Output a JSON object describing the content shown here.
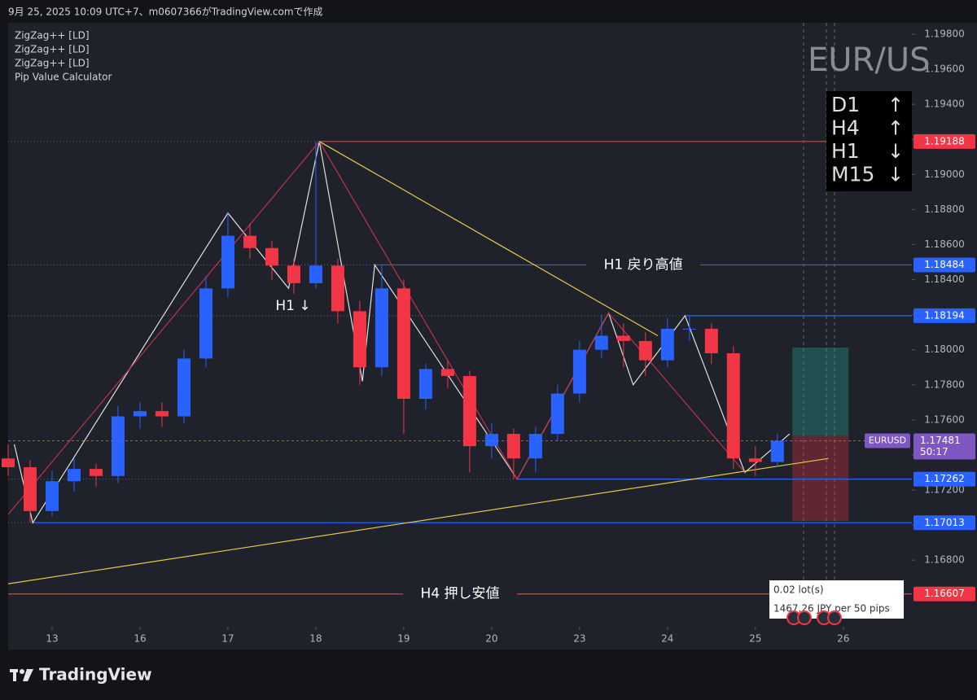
{
  "header": {
    "caption": "9月 25, 2025 10:09 UTC+7、m0607366がTradingView.comで作成"
  },
  "footer": {
    "brand": "TradingView"
  },
  "chart_data": {
    "type": "candlestick",
    "indicators": [
      "ZigZag++ [LD]",
      "ZigZag++ [LD]",
      "ZigZag++ [LD]",
      "Pip Value Calculator"
    ],
    "watermark": "EUR/US",
    "symbol": "EURUSD",
    "last": 1.17481,
    "last_color": "#7e57c2",
    "countdown": "50:17",
    "up_color": "#2962ff",
    "down_color": "#f23645",
    "ylim": [
      1.1642,
      1.19865
    ],
    "yticks": [
      {
        "value": 1.168,
        "label": "1.16800"
      },
      {
        "value": 1.17,
        "label": "1.17000"
      },
      {
        "value": 1.172,
        "label": "1.17200"
      },
      {
        "value": 1.174,
        "label": "1.17400"
      },
      {
        "value": 1.176,
        "label": "1.17600"
      },
      {
        "value": 1.178,
        "label": "1.17800"
      },
      {
        "value": 1.18,
        "label": "1.18000"
      },
      {
        "value": 1.182,
        "label": "1.18200"
      },
      {
        "value": 1.184,
        "label": "1.18400"
      },
      {
        "value": 1.186,
        "label": "1.18600"
      },
      {
        "value": 1.188,
        "label": "1.18800"
      },
      {
        "value": 1.19,
        "label": "1.19000"
      },
      {
        "value": 1.192,
        "label": "1.19200"
      },
      {
        "value": 1.194,
        "label": "1.19400"
      },
      {
        "value": 1.196,
        "label": "1.19600"
      },
      {
        "value": 1.198,
        "label": "1.19800"
      }
    ],
    "xlim": [
      -0.5,
      9.78
    ],
    "xticks": [
      {
        "value": 0,
        "label": "13"
      },
      {
        "value": 1,
        "label": "16"
      },
      {
        "value": 2,
        "label": "17"
      },
      {
        "value": 3,
        "label": "18"
      },
      {
        "value": 4,
        "label": "19"
      },
      {
        "value": 5,
        "label": "20"
      },
      {
        "value": 6,
        "label": "23"
      },
      {
        "value": 7,
        "label": "24"
      },
      {
        "value": 8,
        "label": "25"
      },
      {
        "value": 9,
        "label": "26"
      }
    ],
    "x": [
      -0.5,
      -0.25,
      0,
      0.25,
      0.5,
      0.75,
      1,
      1.25,
      1.5,
      1.75,
      2,
      2.25,
      2.5,
      2.75,
      3,
      3.25,
      3.5,
      3.75,
      4,
      4.25,
      4.5,
      4.75,
      5,
      5.25,
      5.5,
      5.75,
      6,
      6.25,
      6.5,
      6.75,
      7,
      7.25,
      7.5,
      7.75,
      8,
      8.25
    ],
    "ohlc": [
      [
        1.1738,
        1.1746,
        1.1728,
        1.1733
      ],
      [
        1.1733,
        1.1737,
        1.17013,
        1.1708
      ],
      [
        1.1708,
        1.1731,
        1.1705,
        1.1725
      ],
      [
        1.1725,
        1.1738,
        1.1719,
        1.1732
      ],
      [
        1.1732,
        1.1735,
        1.1722,
        1.1728
      ],
      [
        1.1728,
        1.1768,
        1.1724,
        1.1762
      ],
      [
        1.1762,
        1.177,
        1.1755,
        1.1765
      ],
      [
        1.1765,
        1.177,
        1.1756,
        1.1762
      ],
      [
        1.1762,
        1.18,
        1.1758,
        1.1795
      ],
      [
        1.1795,
        1.1842,
        1.179,
        1.1835
      ],
      [
        1.1835,
        1.1878,
        1.183,
        1.1865
      ],
      [
        1.1865,
        1.1872,
        1.1852,
        1.1858
      ],
      [
        1.1858,
        1.1862,
        1.184,
        1.1848
      ],
      [
        1.1848,
        1.1852,
        1.1832,
        1.1838
      ],
      [
        1.1838,
        1.19188,
        1.1835,
        1.1848
      ],
      [
        1.1848,
        1.1852,
        1.1815,
        1.1822
      ],
      [
        1.1822,
        1.1828,
        1.178,
        1.179
      ],
      [
        1.179,
        1.18484,
        1.1785,
        1.1835
      ],
      [
        1.1835,
        1.184,
        1.1752,
        1.1772
      ],
      [
        1.1772,
        1.1792,
        1.1766,
        1.1789
      ],
      [
        1.1789,
        1.1794,
        1.1778,
        1.1785
      ],
      [
        1.1785,
        1.1788,
        1.173,
        1.1745
      ],
      [
        1.1745,
        1.1758,
        1.1738,
        1.1752
      ],
      [
        1.1752,
        1.1755,
        1.17262,
        1.1738
      ],
      [
        1.1738,
        1.1756,
        1.173,
        1.1752
      ],
      [
        1.1752,
        1.178,
        1.1748,
        1.1775
      ],
      [
        1.1775,
        1.1805,
        1.177,
        1.18
      ],
      [
        1.18,
        1.182,
        1.1795,
        1.1808
      ],
      [
        1.1808,
        1.1815,
        1.179,
        1.1805
      ],
      [
        1.1805,
        1.181,
        1.1785,
        1.1794
      ],
      [
        1.1794,
        1.1818,
        1.179,
        1.1812
      ],
      [
        1.1812,
        1.18194,
        1.1805,
        1.1812
      ],
      [
        1.1812,
        1.1815,
        1.1792,
        1.1798
      ],
      [
        1.1798,
        1.1802,
        1.1732,
        1.1738
      ],
      [
        1.1738,
        1.1745,
        1.1728,
        1.1736
      ],
      [
        1.1736,
        1.1752,
        1.1733,
        1.17481
      ]
    ],
    "lines": [
      {
        "color": "#e0e0e0",
        "x": [
          -0.43,
          -0.22,
          2.0,
          2.69,
          3.04,
          3.53,
          3.67,
          5.29,
          6.33,
          6.61,
          7.2,
          7.88,
          8.39
        ],
        "y": [
          1.1746,
          1.17013,
          1.1878,
          1.1835,
          1.19188,
          1.1782,
          1.18484,
          1.17262,
          1.1821,
          1.178,
          1.18194,
          1.173,
          1.1752
        ]
      },
      {
        "color": "#c2314a",
        "x": [
          -0.5,
          3.04,
          5.29,
          6.33,
          7.88
        ],
        "y": [
          1.1706,
          1.19188,
          1.17262,
          1.1821,
          1.173
        ]
      },
      {
        "color": "#e6c84a",
        "x": [
          3.04,
          6.89
        ],
        "y": [
          1.19188,
          1.1808
        ]
      },
      {
        "color": "#e6c84a",
        "x": [
          -0.5,
          8.83
        ],
        "y": [
          1.16665,
          1.1738
        ]
      }
    ],
    "levels": [
      {
        "value": 1.19188,
        "color": "#f23645",
        "x0": 3.04
      },
      {
        "value": 1.18484,
        "color": "#2962ff",
        "x0": 3.67,
        "label": "H1 戻り高値"
      },
      {
        "value": 1.18194,
        "color": "#2962ff",
        "x0": 7.2
      },
      {
        "value": 1.17262,
        "color": "#2962ff",
        "x0": 5.29
      },
      {
        "value": 1.17013,
        "color": "#2962ff",
        "x0": -0.22
      },
      {
        "value": 1.16607,
        "color": "#f23645",
        "x0": -0.5,
        "label": "H4 押し安値"
      }
    ],
    "annotation": "H1 ↓",
    "position": {
      "x0": 8.42,
      "x1": 9.06,
      "entry": 1.17511,
      "target": 1.18012,
      "stop": 1.17023
    },
    "trend_table": [
      {
        "tf": "D1",
        "dir": "↑"
      },
      {
        "tf": "H4",
        "dir": "↑"
      },
      {
        "tf": "H1",
        "dir": "↓"
      },
      {
        "tf": "M15",
        "dir": "↓"
      }
    ],
    "pip_calculator": {
      "lots": "0.02 lot(s)",
      "value": "1467.26 JPY per 50 pips"
    }
  }
}
